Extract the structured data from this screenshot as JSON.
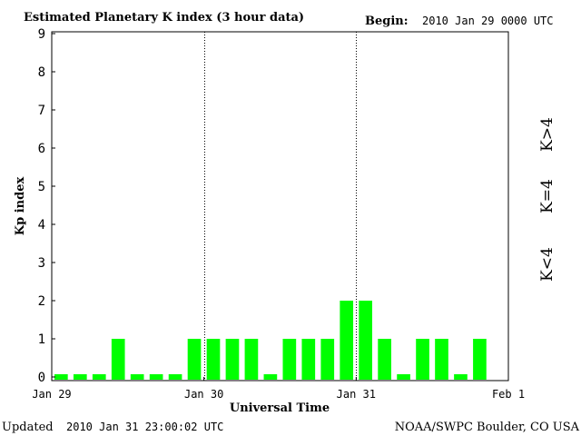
{
  "header": {
    "title": "Estimated Planetary K index (3 hour data)",
    "begin_label": "Begin:",
    "begin_value": "2010 Jan 29 0000 UTC"
  },
  "footer": {
    "updated_label": "Updated",
    "updated_value": "2010 Jan 31 23:00:02 UTC",
    "credit": "NOAA/SWPC Boulder, CO USA"
  },
  "legend": {
    "high": {
      "text": "K>4",
      "color": "#ff2200"
    },
    "equal": {
      "text": "K=4",
      "color": "#ffcc00"
    },
    "low": {
      "text": "K<4",
      "color": "#00ff00"
    }
  },
  "chart_data": {
    "type": "bar",
    "title": "Estimated Planetary K index (3 hour data)",
    "xlabel": "Universal Time",
    "ylabel": "Kp index",
    "ylim": [
      0,
      9
    ],
    "yticks": [
      "0",
      "1",
      "2",
      "3",
      "4",
      "5",
      "6",
      "7",
      "8",
      "9"
    ],
    "xticks": [
      {
        "label": "Jan 29",
        "hour": 0
      },
      {
        "label": "Jan 30",
        "hour": 24
      },
      {
        "label": "Jan 31",
        "hour": 48
      },
      {
        "label": "Feb 1",
        "hour": 72
      }
    ],
    "day_separators_hours": [
      24,
      48
    ],
    "interval_hours": 3,
    "values": [
      0,
      0,
      0,
      1,
      0,
      0,
      0,
      1,
      1,
      1,
      1,
      0,
      1,
      1,
      1,
      2,
      2,
      1,
      0,
      1,
      1,
      0,
      1
    ],
    "bar_color": "#00ff00",
    "grid": false
  }
}
